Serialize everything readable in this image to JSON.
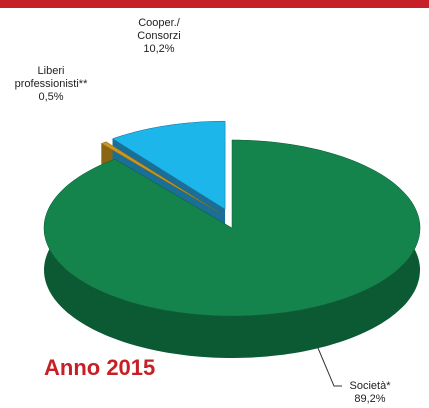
{
  "chart_data": {
    "type": "pie",
    "title": "Anno 2015",
    "categories": [
      "Società*",
      "Liberi professionisti**",
      "Cooper./ Consorzi"
    ],
    "values": [
      89.2,
      0.5,
      10.2
    ],
    "value_labels": [
      "89,2%",
      "0,5%",
      "10,2%"
    ],
    "colors": [
      "#14844c",
      "#c9961f",
      "#1cb6ea"
    ],
    "side_colors": [
      "#0b5a33",
      "#8a6512",
      "#1a6f96"
    ]
  }
}
